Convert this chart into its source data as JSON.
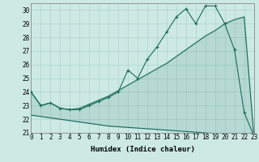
{
  "xlabel": "Humidex (Indice chaleur)",
  "bg_color": "#cce9e4",
  "line_color": "#1a6b5a",
  "zigzag_x": [
    0,
    1,
    2,
    3,
    4,
    5,
    6,
    7,
    8,
    9,
    10,
    11,
    12,
    13,
    14,
    15,
    16,
    17,
    18,
    19,
    20,
    21,
    22,
    23
  ],
  "zigzag_y": [
    24.0,
    23.0,
    23.2,
    22.8,
    22.7,
    22.7,
    23.0,
    23.3,
    23.6,
    24.0,
    25.6,
    25.0,
    26.4,
    27.3,
    28.4,
    29.5,
    30.1,
    29.0,
    30.3,
    30.3,
    29.0,
    27.1,
    22.5,
    20.8
  ],
  "smooth_x": [
    0,
    1,
    2,
    3,
    4,
    5,
    6,
    7,
    8,
    9,
    10,
    11,
    12,
    13,
    14,
    15,
    16,
    17,
    18,
    19,
    20,
    21,
    22,
    23
  ],
  "smooth_y": [
    24.0,
    23.0,
    23.2,
    22.8,
    22.7,
    22.8,
    23.1,
    23.4,
    23.7,
    24.1,
    24.5,
    24.9,
    25.3,
    25.7,
    26.1,
    26.6,
    27.1,
    27.6,
    28.1,
    28.5,
    29.0,
    29.3,
    29.5,
    20.8
  ],
  "base_x": [
    0,
    1,
    2,
    3,
    4,
    5,
    6,
    7,
    8,
    9,
    10,
    11,
    12,
    13,
    14,
    15,
    16,
    17,
    18,
    19,
    20,
    21,
    22,
    23
  ],
  "base_y": [
    22.3,
    22.2,
    22.1,
    22.0,
    21.9,
    21.8,
    21.7,
    21.6,
    21.5,
    21.45,
    21.4,
    21.35,
    21.3,
    21.25,
    21.2,
    21.15,
    21.1,
    21.05,
    21.0,
    20.95,
    20.9,
    20.85,
    20.82,
    20.8
  ],
  "xlim": [
    0,
    23
  ],
  "ylim": [
    21.0,
    30.5
  ],
  "yticks": [
    21,
    22,
    23,
    24,
    25,
    26,
    27,
    28,
    29,
    30
  ],
  "xticks": [
    0,
    1,
    2,
    3,
    4,
    5,
    6,
    7,
    8,
    9,
    10,
    11,
    12,
    13,
    14,
    15,
    16,
    17,
    18,
    19,
    20,
    21,
    22,
    23
  ],
  "grid_color": "#b0d4ce",
  "tick_label_fontsize": 5.5,
  "xlabel_fontsize": 6.5
}
